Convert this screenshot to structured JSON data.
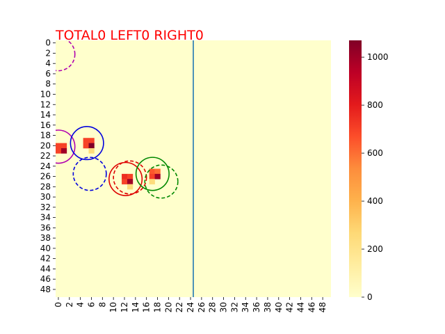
{
  "chart_data": {
    "type": "heatmap",
    "title": "TOTAL0  LEFT0 RIGHT0",
    "title_color": "#ff0000",
    "grid": false,
    "legend_placement": "right (colorbar)",
    "colormap": "YlOrRd",
    "shape": [
      50,
      50
    ],
    "background_value": 0,
    "x_ticks": [
      "0",
      "2",
      "4",
      "6",
      "8",
      "10",
      "12",
      "14",
      "16",
      "18",
      "20",
      "22",
      "24",
      "26",
      "28",
      "30",
      "32",
      "34",
      "36",
      "38",
      "40",
      "42",
      "44",
      "46",
      "48"
    ],
    "y_ticks": [
      "0",
      "2",
      "4",
      "6",
      "8",
      "10",
      "12",
      "14",
      "16",
      "18",
      "20",
      "22",
      "24",
      "26",
      "28",
      "30",
      "32",
      "34",
      "36",
      "38",
      "40",
      "42",
      "44",
      "46",
      "48"
    ],
    "colorbar": {
      "min": 0,
      "max": 1070,
      "ticks": [
        "0",
        "200",
        "400",
        "600",
        "800",
        "1000"
      ]
    },
    "cells": [
      {
        "x": 0,
        "y": 20,
        "value": 700
      },
      {
        "x": 1,
        "y": 20,
        "value": 700
      },
      {
        "x": 0,
        "y": 21,
        "value": 700
      },
      {
        "x": 1,
        "y": 21,
        "value": 1000
      },
      {
        "x": 5,
        "y": 19,
        "value": 700
      },
      {
        "x": 6,
        "y": 19,
        "value": 700
      },
      {
        "x": 5,
        "y": 20,
        "value": 700
      },
      {
        "x": 6,
        "y": 20,
        "value": 1070
      },
      {
        "x": 6,
        "y": 21,
        "value": 250
      },
      {
        "x": 12,
        "y": 26,
        "value": 750
      },
      {
        "x": 13,
        "y": 26,
        "value": 700
      },
      {
        "x": 12,
        "y": 27,
        "value": 700
      },
      {
        "x": 13,
        "y": 27,
        "value": 1000
      },
      {
        "x": 13,
        "y": 28,
        "value": 250
      },
      {
        "x": 17,
        "y": 25,
        "value": 650
      },
      {
        "x": 18,
        "y": 25,
        "value": 600
      },
      {
        "x": 17,
        "y": 26,
        "value": 700
      },
      {
        "x": 18,
        "y": 26,
        "value": 1000
      },
      {
        "x": 17,
        "y": 27,
        "value": 250
      }
    ],
    "divider": {
      "x": 25,
      "color": "#1f77b4"
    },
    "circles": [
      {
        "cx": 0.5,
        "cy": 2.7,
        "r": 3.0,
        "color": "#b000b0",
        "style": "dashed"
      },
      {
        "cx": 0.5,
        "cy": 20.7,
        "r": 3.0,
        "color": "#b000b0",
        "style": "solid"
      },
      {
        "cx": 5.7,
        "cy": 20.0,
        "r": 3.0,
        "color": "#0000dd",
        "style": "solid"
      },
      {
        "cx": 6.2,
        "cy": 26.0,
        "r": 3.0,
        "color": "#0000dd",
        "style": "dashed"
      },
      {
        "cx": 12.7,
        "cy": 27.0,
        "r": 3.0,
        "color": "#dd0000",
        "style": "solid"
      },
      {
        "cx": 13.5,
        "cy": 26.7,
        "r": 3.0,
        "color": "#dd0000",
        "style": "dashed"
      },
      {
        "cx": 17.6,
        "cy": 26.0,
        "r": 3.0,
        "color": "#008800",
        "style": "solid"
      },
      {
        "cx": 19.2,
        "cy": 27.5,
        "r": 3.0,
        "color": "#008800",
        "style": "dashed"
      }
    ]
  }
}
